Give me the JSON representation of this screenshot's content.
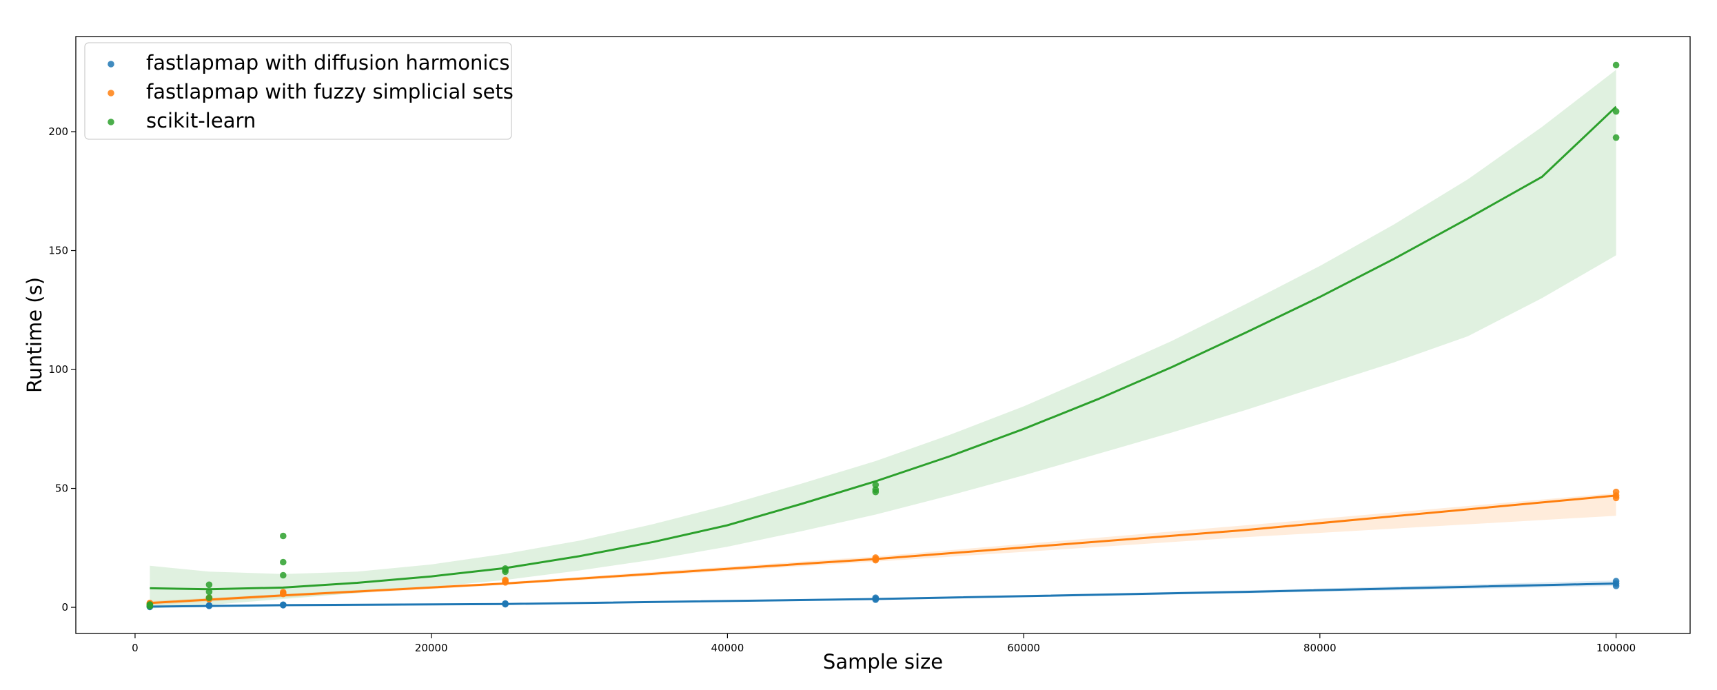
{
  "chart_data": {
    "type": "scatter",
    "title": "",
    "xlabel": "Sample size",
    "ylabel": "Runtime (s)",
    "xlim": [
      -4000,
      105000
    ],
    "ylim": [
      -11,
      240
    ],
    "xticks": [
      0,
      20000,
      40000,
      60000,
      80000,
      100000
    ],
    "yticks": [
      0,
      50,
      100,
      150,
      200
    ],
    "grid": false,
    "legend_position": "top-left",
    "series": [
      {
        "name": "fastlapmap with diffusion harmonics",
        "color": "#1f77b4",
        "points": [
          [
            1000,
            0.2
          ],
          [
            1000,
            0.3
          ],
          [
            1000,
            0.4
          ],
          [
            5000,
            0.6
          ],
          [
            5000,
            0.7
          ],
          [
            5000,
            0.8
          ],
          [
            10000,
            0.9
          ],
          [
            10000,
            1.0
          ],
          [
            10000,
            1.1
          ],
          [
            25000,
            1.3
          ],
          [
            25000,
            1.5
          ],
          [
            25000,
            1.6
          ],
          [
            50000,
            3.2
          ],
          [
            50000,
            3.6
          ],
          [
            50000,
            4.0
          ],
          [
            100000,
            9.0
          ],
          [
            100000,
            10.0
          ],
          [
            100000,
            11.0
          ]
        ],
        "fit": [
          [
            1000,
            0.3
          ],
          [
            10000,
            0.9
          ],
          [
            25000,
            1.4
          ],
          [
            50000,
            3.5
          ],
          [
            75000,
            6.5
          ],
          [
            100000,
            10.0
          ]
        ],
        "ci": {
          "x": [
            1000,
            25000,
            50000,
            75000,
            100000
          ],
          "lower": [
            -0.2,
            1.1,
            3.1,
            5.9,
            9.0
          ],
          "upper": [
            0.8,
            1.7,
            3.9,
            7.1,
            11.3
          ]
        }
      },
      {
        "name": "fastlapmap with fuzzy simplicial sets",
        "color": "#ff7f0e",
        "points": [
          [
            1000,
            1.4
          ],
          [
            1000,
            1.6
          ],
          [
            1000,
            1.8
          ],
          [
            5000,
            3.4
          ],
          [
            5000,
            3.7
          ],
          [
            5000,
            4.0
          ],
          [
            10000,
            5.6
          ],
          [
            10000,
            6.0
          ],
          [
            10000,
            6.4
          ],
          [
            25000,
            10.5
          ],
          [
            25000,
            11.0
          ],
          [
            25000,
            11.5
          ],
          [
            50000,
            19.8
          ],
          [
            50000,
            20.3
          ],
          [
            50000,
            20.9
          ],
          [
            100000,
            46.0
          ],
          [
            100000,
            47.0
          ],
          [
            100000,
            48.5
          ]
        ],
        "fit": [
          [
            1000,
            1.8
          ],
          [
            10000,
            5.0
          ],
          [
            25000,
            10.0
          ],
          [
            50000,
            20.3
          ],
          [
            75000,
            32.5
          ],
          [
            100000,
            47.0
          ]
        ],
        "ci": {
          "x": [
            1000,
            25000,
            50000,
            75000,
            100000
          ],
          "lower": [
            1.0,
            9.4,
            19.2,
            29.5,
            38.5
          ],
          "upper": [
            2.6,
            10.6,
            21.4,
            34.5,
            48.0
          ]
        }
      },
      {
        "name": "scikit-learn",
        "color": "#2ca02c",
        "points": [
          [
            1000,
            0.5
          ],
          [
            1000,
            0.9
          ],
          [
            1000,
            1.2
          ],
          [
            5000,
            4.0
          ],
          [
            5000,
            6.5
          ],
          [
            5000,
            9.5
          ],
          [
            10000,
            13.5
          ],
          [
            10000,
            19.0
          ],
          [
            10000,
            30.0
          ],
          [
            25000,
            15.0
          ],
          [
            25000,
            15.8
          ],
          [
            25000,
            16.3
          ],
          [
            50000,
            48.5
          ],
          [
            50000,
            49.5
          ],
          [
            50000,
            51.5
          ],
          [
            100000,
            197.5
          ],
          [
            100000,
            208.5
          ],
          [
            100000,
            228.0
          ]
        ],
        "fit": [
          [
            1000,
            8.0
          ],
          [
            5000,
            7.6
          ],
          [
            10000,
            8.3
          ],
          [
            15000,
            10.3
          ],
          [
            20000,
            13.0
          ],
          [
            25000,
            16.5
          ],
          [
            30000,
            21.5
          ],
          [
            35000,
            27.5
          ],
          [
            40000,
            34.5
          ],
          [
            45000,
            43.5
          ],
          [
            50000,
            53.0
          ],
          [
            55000,
            63.5
          ],
          [
            60000,
            75.0
          ],
          [
            65000,
            87.5
          ],
          [
            70000,
            101.0
          ],
          [
            75000,
            115.5
          ],
          [
            80000,
            130.5
          ],
          [
            85000,
            146.5
          ],
          [
            90000,
            163.5
          ],
          [
            95000,
            181.0
          ],
          [
            100000,
            210.5
          ]
        ],
        "ci": {
          "x": [
            1000,
            5000,
            10000,
            15000,
            20000,
            25000,
            30000,
            35000,
            40000,
            45000,
            50000,
            55000,
            60000,
            65000,
            70000,
            75000,
            80000,
            85000,
            90000,
            95000,
            100000
          ],
          "lower": [
            -0.5,
            1.0,
            3.5,
            6.0,
            8.5,
            11.5,
            15.5,
            20.0,
            25.5,
            32.0,
            39.0,
            47.0,
            55.5,
            64.5,
            73.5,
            83.0,
            93.0,
            103.0,
            114.0,
            130.0,
            148.0
          ],
          "upper": [
            17.5,
            15.0,
            14.0,
            15.0,
            18.0,
            22.5,
            28.0,
            35.0,
            43.0,
            52.0,
            61.5,
            72.5,
            84.5,
            98.0,
            112.0,
            127.5,
            143.5,
            161.0,
            180.0,
            202.0,
            226.0
          ]
        }
      }
    ]
  }
}
